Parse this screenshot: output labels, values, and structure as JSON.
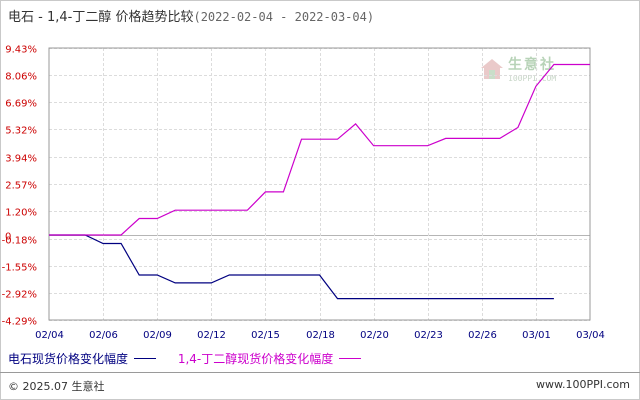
{
  "header": {
    "title": "电石 - 1,4-丁二醇 价格趋势比较",
    "date_range": "(2022-02-04 - 2022-03-04)"
  },
  "chart_data": {
    "type": "line",
    "x_labels": [
      "02/04",
      "02/06",
      "02/09",
      "02/12",
      "02/15",
      "02/18",
      "02/20",
      "02/23",
      "02/26",
      "03/01",
      "03/04"
    ],
    "y_ticks": [
      9.43,
      8.06,
      6.69,
      5.32,
      3.94,
      2.57,
      1.2,
      -0.18,
      -1.55,
      -2.92,
      -4.29
    ],
    "y_tick_labels": [
      "9.43%",
      "8.06%",
      "6.69%",
      "5.32%",
      "3.94%",
      "2.57%",
      "1.20%",
      "-0.18%",
      "-1.55%",
      "-2.92%",
      "-4.29%"
    ],
    "zero_label": "0",
    "ylim": [
      -4.29,
      9.43
    ],
    "grid": true,
    "legend_position": "bottom",
    "series": [
      {
        "name": "电石现货价格变化幅度",
        "color": "#000080",
        "points": [
          [
            0,
            0
          ],
          [
            2,
            0
          ],
          [
            3,
            -0.43
          ],
          [
            4,
            -0.43
          ],
          [
            5,
            -2.02
          ],
          [
            6,
            -2.02
          ],
          [
            7,
            -2.42
          ],
          [
            8,
            -2.42
          ],
          [
            9,
            -2.42
          ],
          [
            10,
            -2.02
          ],
          [
            11,
            -2.02
          ],
          [
            12,
            -2.02
          ],
          [
            13,
            -2.02
          ],
          [
            14,
            -2.02
          ],
          [
            15,
            -2.02
          ],
          [
            16,
            -3.21
          ],
          [
            17,
            -3.21
          ],
          [
            18,
            -3.21
          ],
          [
            19,
            -3.21
          ],
          [
            20,
            -3.21
          ],
          [
            21,
            -3.21
          ],
          [
            22,
            -3.21
          ],
          [
            23,
            -3.21
          ],
          [
            24,
            -3.21
          ],
          [
            25,
            -3.21
          ],
          [
            26,
            -3.21
          ],
          [
            27,
            -3.21
          ],
          [
            28,
            -3.21
          ]
        ]
      },
      {
        "name": "1,4-丁二醇现货价格变化幅度",
        "color": "#cc00cc",
        "points": [
          [
            0,
            0
          ],
          [
            2,
            0
          ],
          [
            3,
            0
          ],
          [
            4,
            0
          ],
          [
            5,
            0.83
          ],
          [
            6,
            0.83
          ],
          [
            7,
            1.25
          ],
          [
            8,
            1.25
          ],
          [
            9,
            1.25
          ],
          [
            10,
            1.25
          ],
          [
            11,
            1.25
          ],
          [
            12,
            2.17
          ],
          [
            13,
            2.17
          ],
          [
            14,
            4.83
          ],
          [
            15,
            4.83
          ],
          [
            16,
            4.83
          ],
          [
            17,
            5.6
          ],
          [
            18,
            4.5
          ],
          [
            19,
            4.5
          ],
          [
            20,
            4.5
          ],
          [
            21,
            4.5
          ],
          [
            22,
            4.87
          ],
          [
            23,
            4.87
          ],
          [
            24,
            4.87
          ],
          [
            25,
            4.87
          ],
          [
            26,
            5.42
          ],
          [
            27,
            7.5
          ],
          [
            28,
            8.6
          ],
          [
            29,
            8.6
          ],
          [
            30,
            8.6
          ]
        ]
      }
    ]
  },
  "legend": [
    {
      "label": "电石现货价格变化幅度",
      "color": "#000080"
    },
    {
      "label": "1,4-丁二醇现货价格变化幅度",
      "color": "#cc00cc"
    }
  ],
  "watermark": {
    "name": "生意社",
    "url": "100PPI.COM"
  },
  "footer": {
    "copyright": "© 2025.07 生意社",
    "site": "www.100PPI.com"
  }
}
